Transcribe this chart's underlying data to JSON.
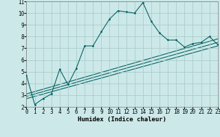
{
  "xlabel": "Humidex (Indice chaleur)",
  "bg_color": "#cce8e8",
  "grid_color": "#aacccc",
  "line_color": "#006060",
  "x_data": [
    0,
    1,
    2,
    3,
    4,
    5,
    6,
    7,
    8,
    9,
    10,
    11,
    12,
    13,
    14,
    15,
    16,
    17,
    18,
    19,
    20,
    21,
    22,
    23
  ],
  "curve1": [
    4.7,
    2.2,
    2.7,
    3.1,
    5.2,
    3.9,
    5.3,
    7.2,
    7.2,
    8.4,
    9.5,
    10.2,
    10.1,
    10.0,
    10.9,
    9.3,
    8.3,
    7.7,
    7.7,
    7.1,
    7.4,
    7.5,
    8.0,
    7.3
  ],
  "line2_x": [
    0,
    23
  ],
  "line2_y": [
    3.1,
    7.8
  ],
  "line3_x": [
    0,
    23
  ],
  "line3_y": [
    2.9,
    7.5
  ],
  "line4_x": [
    0,
    23
  ],
  "line4_y": [
    2.7,
    7.2
  ],
  "xlim": [
    0,
    23
  ],
  "ylim": [
    2,
    11
  ],
  "yticks": [
    2,
    3,
    4,
    5,
    6,
    7,
    8,
    9,
    10,
    11
  ],
  "xticks": [
    0,
    1,
    2,
    3,
    4,
    5,
    6,
    7,
    8,
    9,
    10,
    11,
    12,
    13,
    14,
    15,
    16,
    17,
    18,
    19,
    20,
    21,
    22,
    23
  ],
  "tick_fontsize": 5.5,
  "xlabel_fontsize": 6.5
}
